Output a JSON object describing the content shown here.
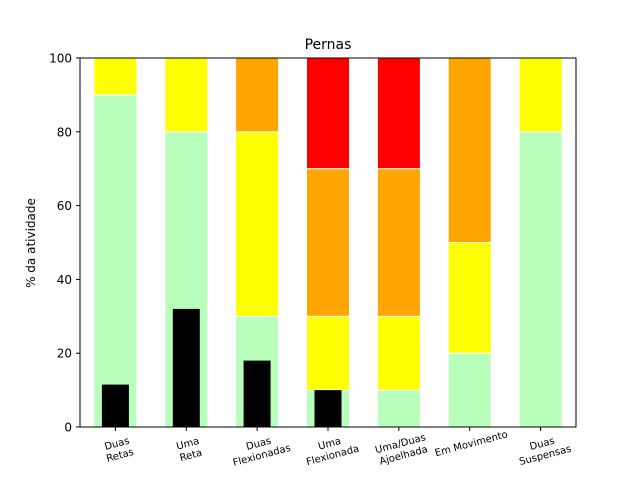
{
  "chart_data": {
    "type": "bar",
    "title": "Pernas",
    "xlabel": "",
    "ylabel": "% da atividade",
    "ylim": [
      0,
      100
    ],
    "yticks": [
      0,
      20,
      40,
      60,
      80,
      100
    ],
    "grid": false,
    "legend": "none",
    "categories": [
      [
        "Duas",
        "Retas"
      ],
      [
        "Uma",
        "Reta"
      ],
      [
        "Duas",
        "Flexionadas"
      ],
      [
        "Uma",
        "Flexionada"
      ],
      [
        "Uma/Duas",
        "Ajoelhada"
      ],
      [
        "Em Movimento"
      ],
      [
        "Duas",
        "Suspensas"
      ]
    ],
    "stacked_series": [
      {
        "color": "#b9ffbc",
        "values": [
          90,
          80,
          30,
          10,
          10,
          20,
          80
        ]
      },
      {
        "color": "#ffff00",
        "values": [
          10,
          20,
          50,
          20,
          20,
          30,
          20
        ]
      },
      {
        "color": "#ffa500",
        "values": [
          0,
          0,
          20,
          40,
          40,
          50,
          0
        ]
      },
      {
        "color": "#ff0000",
        "values": [
          0,
          0,
          0,
          30,
          30,
          0,
          0
        ]
      }
    ],
    "overlay_series": {
      "color": "#000000",
      "values": [
        11.5,
        32,
        18,
        10,
        0,
        0,
        0
      ]
    }
  }
}
